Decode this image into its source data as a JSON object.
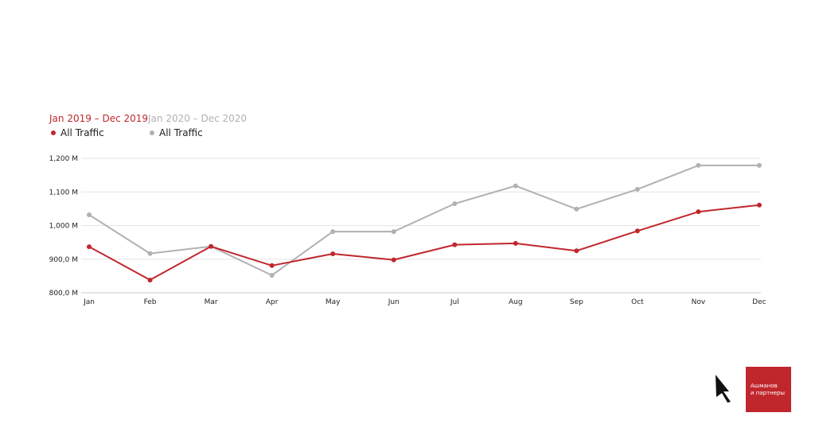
{
  "legend": {
    "period_a": "Jan 2019 – Dec 2019",
    "period_b": "Jan 2020 – Dec 2020",
    "series_a_label": "All Traffic",
    "series_b_label": "All Traffic"
  },
  "colors": {
    "series_a": "#c0272d",
    "series_b": "#b3b0b5",
    "grid": "#e6e6e6",
    "axis": "#cccccc"
  },
  "chart_data": {
    "type": "line",
    "categories": [
      "Jan",
      "Feb",
      "Mar",
      "Apr",
      "May",
      "Jun",
      "Jul",
      "Aug",
      "Sep",
      "Oct",
      "Nov",
      "Dec"
    ],
    "series": [
      {
        "name": "Jan 2019 – Dec 2019 All Traffic",
        "values": [
          937,
          838,
          938,
          881,
          916,
          898,
          943,
          947,
          925,
          984,
          1041,
          1061
        ]
      },
      {
        "name": "Jan 2020 – Dec 2020 All Traffic",
        "values": [
          1032,
          917,
          938,
          852,
          982,
          982,
          1065,
          1118,
          1049,
          1108,
          1179,
          1179
        ]
      }
    ],
    "y_ticks": [
      "800,0 M",
      "900,0 M",
      "1,000 M",
      "1,100 M",
      "1,200 M"
    ],
    "y_tick_values": [
      800,
      900,
      1000,
      1100,
      1200
    ],
    "ylim": [
      800,
      1200
    ],
    "grid": true,
    "legend_position": "top-left"
  },
  "branding": {
    "company_line1": "Ашманов",
    "company_line2": "и партнеры"
  }
}
